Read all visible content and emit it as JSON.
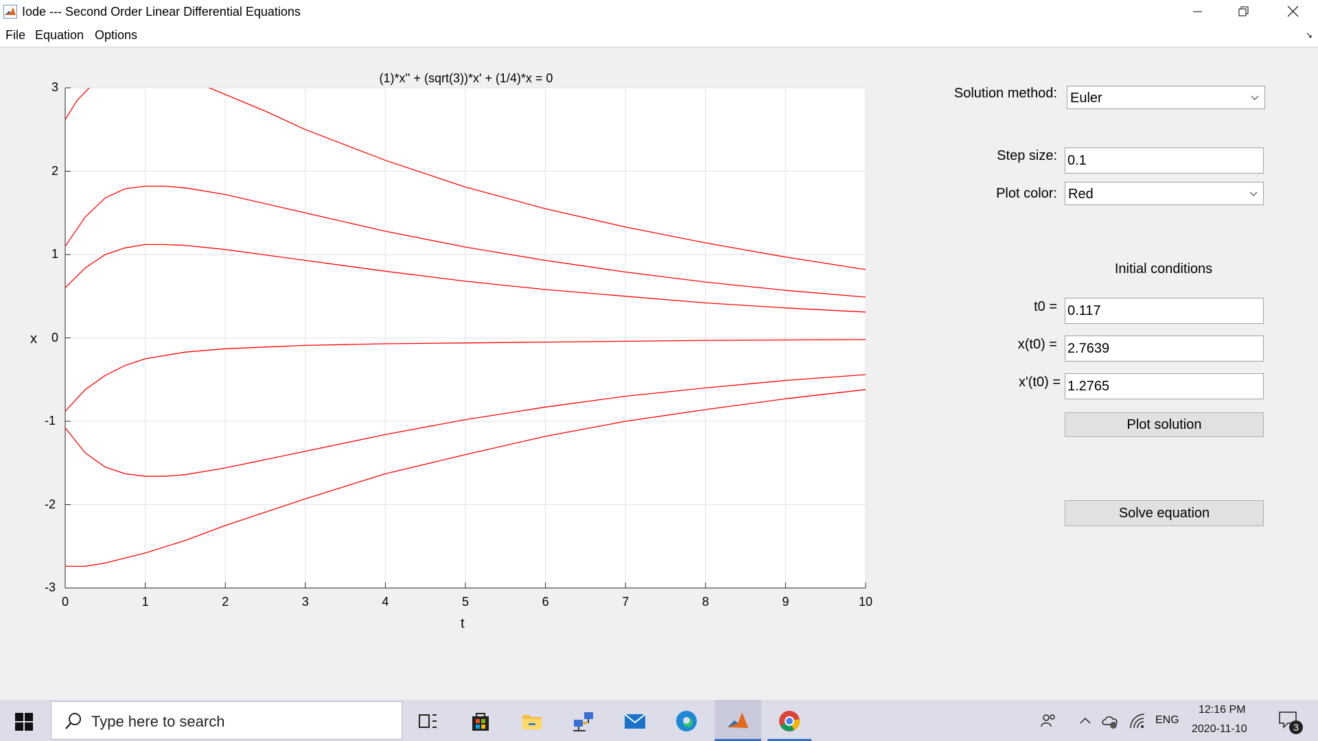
{
  "window": {
    "title": "Iode --- Second Order Linear Differential Equations"
  },
  "menu": {
    "items": [
      "File",
      "Equation",
      "Options"
    ]
  },
  "plot": {
    "title": "(1)*x'' + (sqrt(3))*x' + (1/4)*x = 0",
    "xlabel": "t",
    "ylabel": "x",
    "line_color": "#ff0000"
  },
  "chart_data": {
    "type": "line",
    "title": "(1)*x'' + (sqrt(3))*x' + (1/4)*x = 0",
    "xlabel": "t",
    "ylabel": "x",
    "xlim": [
      0,
      10
    ],
    "ylim": [
      -3,
      3
    ],
    "x_ticks": [
      "0",
      "1",
      "2",
      "3",
      "4",
      "5",
      "6",
      "7",
      "8",
      "9",
      "10"
    ],
    "y_ticks": [
      "3",
      "2",
      "1",
      "0",
      "-1",
      "-2",
      "-3"
    ],
    "grid": true,
    "series": [
      {
        "x": [
          0,
          0.15,
          0.3,
          0.6,
          1,
          1.5,
          1.8,
          2.5,
          3,
          4,
          5,
          6,
          7,
          8,
          9,
          10
        ],
        "values": [
          2.62,
          2.85,
          3.0,
          3.35,
          3.6,
          3.62,
          3.0,
          2.72,
          2.5,
          2.13,
          1.81,
          1.55,
          1.33,
          1.14,
          0.97,
          0.82
        ]
      },
      {
        "x": [
          0,
          0.25,
          0.5,
          0.75,
          1,
          1.25,
          1.5,
          2,
          3,
          4,
          5,
          6,
          7,
          8,
          9,
          10
        ],
        "values": [
          1.1,
          1.45,
          1.68,
          1.79,
          1.82,
          1.82,
          1.8,
          1.72,
          1.5,
          1.28,
          1.09,
          0.93,
          0.79,
          0.67,
          0.57,
          0.49
        ]
      },
      {
        "x": [
          0,
          0.25,
          0.5,
          0.75,
          1,
          1.25,
          1.5,
          2,
          3,
          4,
          5,
          6,
          7,
          8,
          9,
          10
        ],
        "values": [
          0.6,
          0.84,
          1.0,
          1.08,
          1.12,
          1.12,
          1.11,
          1.06,
          0.93,
          0.8,
          0.68,
          0.58,
          0.5,
          0.42,
          0.36,
          0.31
        ]
      },
      {
        "x": [
          0,
          0.25,
          0.5,
          0.75,
          1,
          1.5,
          2,
          3,
          4,
          5,
          6,
          7,
          8,
          9,
          10
        ],
        "values": [
          -0.88,
          -0.62,
          -0.45,
          -0.33,
          -0.25,
          -0.17,
          -0.13,
          -0.09,
          -0.07,
          -0.06,
          -0.05,
          -0.04,
          -0.03,
          -0.025,
          -0.02
        ]
      },
      {
        "x": [
          0,
          0.25,
          0.5,
          0.75,
          1,
          1.25,
          1.5,
          2,
          3,
          4,
          5,
          6,
          7,
          8,
          9,
          10
        ],
        "values": [
          -1.08,
          -1.38,
          -1.55,
          -1.63,
          -1.66,
          -1.66,
          -1.64,
          -1.56,
          -1.36,
          -1.16,
          -0.98,
          -0.83,
          -0.7,
          -0.6,
          -0.51,
          -0.44
        ]
      },
      {
        "x": [
          0,
          0.25,
          0.5,
          0.75,
          1,
          1.5,
          2,
          3,
          4,
          5,
          6,
          7,
          8,
          9,
          10
        ],
        "values": [
          -2.74,
          -2.74,
          -2.7,
          -2.64,
          -2.58,
          -2.43,
          -2.25,
          -1.93,
          -1.63,
          -1.4,
          -1.18,
          -1.0,
          -0.86,
          -0.73,
          -0.62
        ]
      }
    ]
  },
  "controls": {
    "solution_method_label": "Solution method:",
    "solution_method_value": "Euler",
    "step_size_label": "Step size:",
    "step_size_value": "0.1",
    "plot_color_label": "Plot color:",
    "plot_color_value": "Red",
    "initial_conditions_label": "Initial conditions",
    "t0_label": "t0 =",
    "t0_value": "0.117",
    "x0_label": "x(t0) =",
    "x0_value": "2.7639",
    "dx0_label": "x'(t0) =",
    "dx0_value": "1.2765",
    "plot_button": "Plot solution",
    "solve_button": "Solve equation"
  },
  "taskbar": {
    "search_placeholder": "Type here to search",
    "language": "ENG",
    "time": "12:16 PM",
    "date": "2020-11-10",
    "notification_count": "3"
  }
}
